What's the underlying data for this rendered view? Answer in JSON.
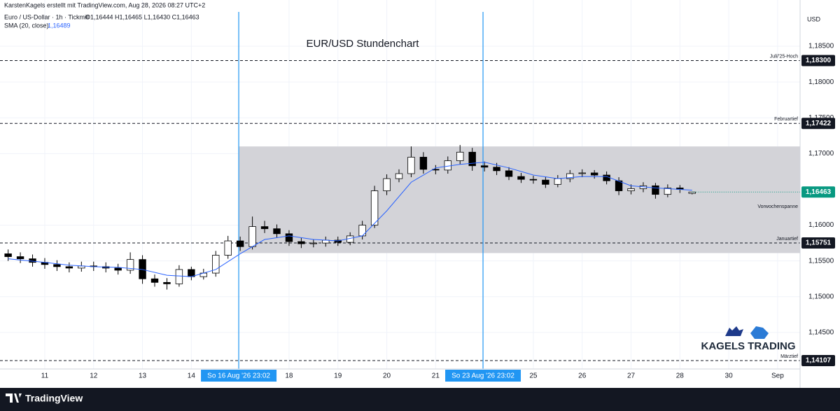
{
  "chart_data": {
    "type": "candlestick",
    "header": "KarstenKagels erstellt mit TradingView.com, Aug 28, 2026 08:27 UTC+2",
    "symbol": "Euro / US-Dollar · 1h · Tickmill",
    "ohlc_text": "O1,16444  H1,16465  L1,16430  C1,16463",
    "title": "EUR/USD Stundenchart",
    "currency": "USD",
    "logo": "KAGELS TRADING",
    "footer": "TradingView",
    "up_color": "#ffffff",
    "down_color": "#000000",
    "x": [
      -0.75,
      -0.5,
      -0.25,
      0,
      0.25,
      0.5,
      0.75,
      1,
      1.25,
      1.5,
      1.75,
      2,
      2.25,
      2.5,
      2.75,
      3,
      3.25,
      3.5,
      3.75,
      4,
      4.25,
      4.5,
      4.75,
      5,
      5.25,
      5.5,
      5.75,
      6,
      6.25,
      6.5,
      6.75,
      7,
      7.25,
      7.5,
      7.75,
      8,
      8.25,
      8.5,
      8.75,
      9,
      9.25,
      9.5,
      9.75,
      10,
      10.25,
      10.5,
      10.75,
      11,
      11.25,
      11.5,
      11.75,
      12,
      12.25,
      12.5,
      12.75,
      13,
      13.25
    ],
    "open": [
      1.156,
      1.1556,
      1.1553,
      1.1548,
      1.1545,
      1.1542,
      1.154,
      1.1543,
      1.1542,
      1.154,
      1.1537,
      1.1552,
      1.1525,
      1.152,
      1.1518,
      1.1538,
      1.1528,
      1.1533,
      1.1558,
      1.1578,
      1.157,
      1.1598,
      1.1595,
      1.1588,
      1.1577,
      1.1574,
      1.1575,
      1.1579,
      1.1576,
      1.1585,
      1.16,
      1.1648,
      1.1665,
      1.1672,
      1.1695,
      1.1678,
      1.1677,
      1.169,
      1.1702,
      1.1683,
      1.1681,
      1.1676,
      1.1668,
      1.1664,
      1.1663,
      1.1657,
      1.1665,
      1.1672,
      1.1673,
      1.167,
      1.1662,
      1.1648,
      1.1651,
      1.1655,
      1.1643,
      1.1652,
      1.16444
    ],
    "high": [
      1.1566,
      1.1562,
      1.1559,
      1.1554,
      1.1551,
      1.1548,
      1.1549,
      1.1549,
      1.1548,
      1.1546,
      1.1562,
      1.1558,
      1.1531,
      1.1526,
      1.1544,
      1.1542,
      1.1539,
      1.1564,
      1.1585,
      1.1584,
      1.1612,
      1.1606,
      1.1601,
      1.1593,
      1.1582,
      1.158,
      1.1584,
      1.1584,
      1.159,
      1.1606,
      1.1655,
      1.1671,
      1.1678,
      1.171,
      1.1702,
      1.1684,
      1.1696,
      1.1712,
      1.1708,
      1.1689,
      1.1687,
      1.1681,
      1.1673,
      1.1669,
      1.1668,
      1.167,
      1.1677,
      1.1678,
      1.1677,
      1.1675,
      1.1667,
      1.1657,
      1.166,
      1.1659,
      1.1657,
      1.1656,
      1.16465
    ],
    "low": [
      1.155,
      1.1547,
      1.1542,
      1.1539,
      1.1536,
      1.1534,
      1.1535,
      1.1536,
      1.1534,
      1.1531,
      1.1532,
      1.1518,
      1.1514,
      1.151,
      1.1514,
      1.1523,
      1.1524,
      1.1528,
      1.1553,
      1.1564,
      1.1566,
      1.1589,
      1.1582,
      1.1571,
      1.1568,
      1.1569,
      1.157,
      1.1571,
      1.1572,
      1.158,
      1.1596,
      1.1642,
      1.166,
      1.1667,
      1.1672,
      1.1671,
      1.1672,
      1.1685,
      1.1676,
      1.1675,
      1.167,
      1.1663,
      1.1659,
      1.1658,
      1.1652,
      1.1653,
      1.166,
      1.1667,
      1.1665,
      1.1657,
      1.1642,
      1.1643,
      1.1646,
      1.1637,
      1.1639,
      1.1645,
      1.1643
    ],
    "close": [
      1.1556,
      1.1553,
      1.1548,
      1.1545,
      1.1542,
      1.154,
      1.1543,
      1.1542,
      1.154,
      1.1537,
      1.1552,
      1.1525,
      1.152,
      1.1518,
      1.1538,
      1.1528,
      1.1533,
      1.1558,
      1.1578,
      1.157,
      1.1598,
      1.1595,
      1.1588,
      1.1577,
      1.1574,
      1.1575,
      1.1579,
      1.1576,
      1.1585,
      1.16,
      1.1648,
      1.1665,
      1.1672,
      1.1695,
      1.1678,
      1.1677,
      1.169,
      1.1702,
      1.1683,
      1.1681,
      1.1676,
      1.1668,
      1.1664,
      1.1663,
      1.1657,
      1.1665,
      1.1672,
      1.1673,
      1.167,
      1.1662,
      1.1648,
      1.1651,
      1.1655,
      1.1643,
      1.1652,
      1.165,
      1.16463
    ],
    "sma": {
      "name": "SMA (20, close)",
      "value_label": "1,16489",
      "color": "#2962ff",
      "x": [
        -0.75,
        0,
        0.5,
        1,
        1.5,
        2,
        2.5,
        3,
        3.5,
        4,
        4.5,
        5,
        5.5,
        6,
        6.5,
        7,
        7.5,
        8,
        8.5,
        9,
        9.5,
        10,
        10.5,
        11,
        11.5,
        12,
        12.5,
        13,
        13.25
      ],
      "values": [
        1.1553,
        1.1548,
        1.1544,
        1.1542,
        1.1541,
        1.1538,
        1.153,
        1.1528,
        1.1538,
        1.156,
        1.158,
        1.1585,
        1.158,
        1.1578,
        1.1585,
        1.162,
        1.166,
        1.168,
        1.1685,
        1.1688,
        1.168,
        1.167,
        1.1665,
        1.1668,
        1.1668,
        1.1655,
        1.1652,
        1.165,
        1.16489
      ]
    },
    "last_price": {
      "value": 1.16463,
      "label": "1,16463",
      "color": "#089981"
    },
    "levels": [
      {
        "name": "Juli/'25-Hoch",
        "value": 1.183,
        "label": "1,18300"
      },
      {
        "name": "Februartief",
        "value": 1.17422,
        "label": "1,17422"
      },
      {
        "name": "Januartief",
        "value": 1.15751,
        "label": "1,15751"
      },
      {
        "name": "Märztief",
        "value": 1.14107,
        "label": "1,14107"
      }
    ],
    "range_box": {
      "name": "Vorwochenspanne",
      "x_start": 3.97,
      "top": 1.171,
      "bottom": 1.1561
    },
    "markers": [
      {
        "x": 3.97,
        "label": "So 16 Aug '26  23:02"
      },
      {
        "x": 8.97,
        "label": "So 23 Aug '26  23:02"
      }
    ],
    "marker_color": "#2196f3",
    "xlim": [
      -0.845,
      15.46
    ],
    "ylim": [
      1.1399,
      1.1898
    ],
    "xticks": [
      {
        "value": 0,
        "label": "11"
      },
      {
        "value": 1,
        "label": "12"
      },
      {
        "value": 2,
        "label": "13"
      },
      {
        "value": 3,
        "label": "14"
      },
      {
        "value": 5,
        "label": "18"
      },
      {
        "value": 6,
        "label": "19"
      },
      {
        "value": 7,
        "label": "20"
      },
      {
        "value": 8,
        "label": "21"
      },
      {
        "value": 10,
        "label": "25"
      },
      {
        "value": 11,
        "label": "26"
      },
      {
        "value": 12,
        "label": "27"
      },
      {
        "value": 13,
        "label": "28"
      },
      {
        "value": 14,
        "label": "30"
      },
      {
        "value": 15,
        "label": "Sep"
      }
    ],
    "yticks": [
      {
        "value": 1.145,
        "label": "1,14500"
      },
      {
        "value": 1.15,
        "label": "1,15000"
      },
      {
        "value": 1.155,
        "label": "1,15500"
      },
      {
        "value": 1.16,
        "label": "1,16000"
      },
      {
        "value": 1.17,
        "label": "1,17000"
      },
      {
        "value": 1.175,
        "label": "1,17500"
      },
      {
        "value": 1.18,
        "label": "1,18000"
      },
      {
        "value": 1.185,
        "label": "1,18500"
      }
    ],
    "grid": true
  }
}
